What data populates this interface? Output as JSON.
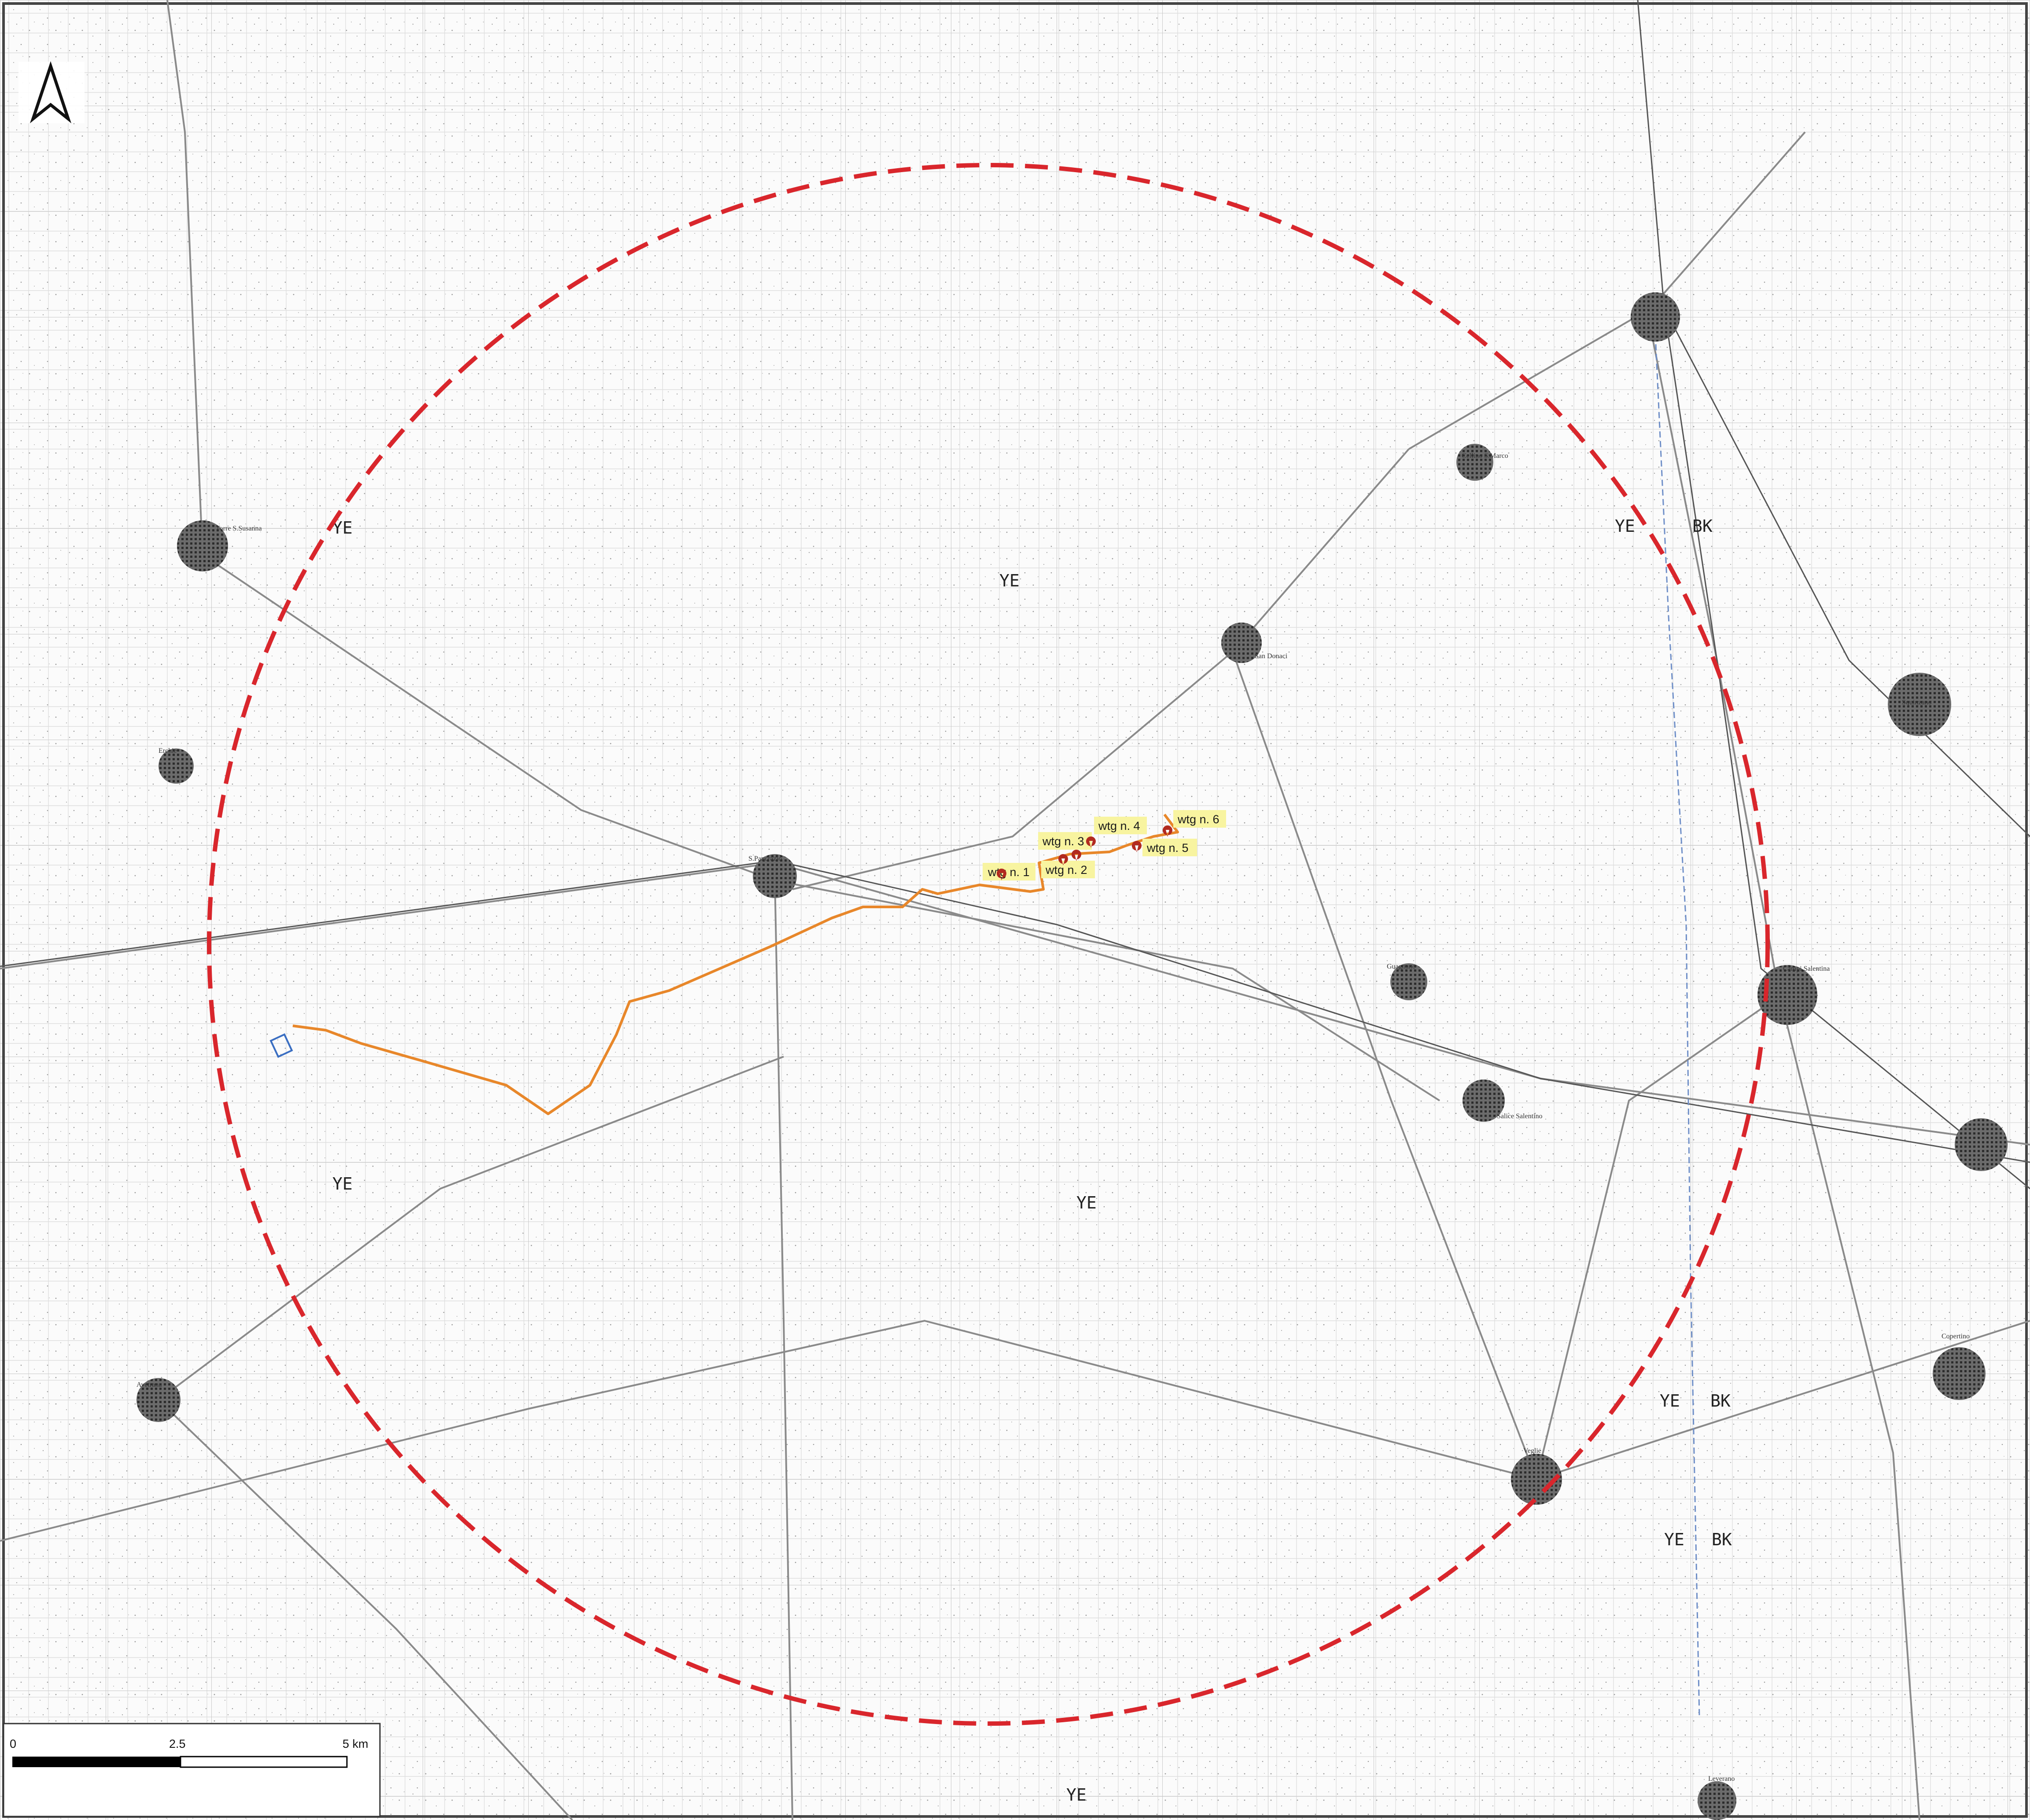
{
  "map": {
    "north_arrow_icon": "north-arrow-icon",
    "buffer_circle_color": "#d9262c",
    "cable_route_color": "#e8872a",
    "turbine_marker_color": "#b22a1f",
    "label_bg_color": "#f8f4a0",
    "turbines": [
      {
        "id": "wtg-1",
        "label": "wtg n. 1"
      },
      {
        "id": "wtg-2",
        "label": "wtg n. 2"
      },
      {
        "id": "wtg-3",
        "label": "wtg n. 3"
      },
      {
        "id": "wtg-4",
        "label": "wtg n. 4"
      },
      {
        "id": "wtg-5",
        "label": "wtg n. 5"
      },
      {
        "id": "wtg-6",
        "label": "wtg n. 6"
      }
    ],
    "zone_codes": [
      "YE",
      "YE",
      "YE",
      "YE",
      "BK",
      "YE",
      "YE",
      "BK",
      "YE",
      "BK",
      "YE"
    ],
    "towns": [
      "Torre S.Susanna",
      "Erchie",
      "Avetrana",
      "S.Pancrazio",
      "San Donaci",
      "Cellino S.Marco",
      "Guagnano",
      "Salice Salentino",
      "Campi Salentina",
      "Veglie",
      "Leverano",
      "Squinzano",
      "Copertino"
    ],
    "scale_bar": {
      "labels": [
        "0",
        "2.5",
        "5 km"
      ]
    }
  }
}
